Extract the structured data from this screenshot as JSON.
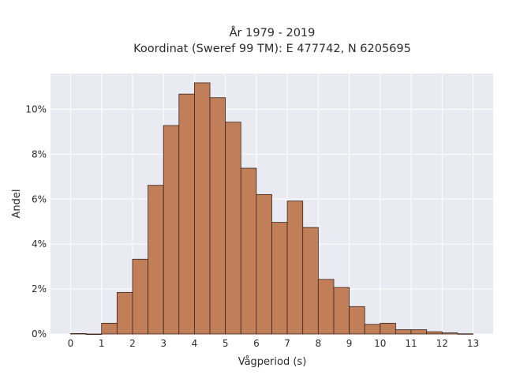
{
  "chart_data": {
    "type": "bar",
    "title": "År 1979 - 2019",
    "subtitle": "Koordinat (Sweref 99 TM): E 477742, N 6205695",
    "xlabel": "Vågperiod (s)",
    "ylabel": "Andel",
    "bin_width": 0.5,
    "bin_starts": [
      0.0,
      0.5,
      1.0,
      1.5,
      2.0,
      2.5,
      3.0,
      3.5,
      4.0,
      4.5,
      5.0,
      5.5,
      6.0,
      6.5,
      7.0,
      7.5,
      8.0,
      8.5,
      9.0,
      9.5,
      10.0,
      10.5,
      11.0,
      11.5,
      12.0,
      12.5
    ],
    "values": [
      0.02,
      0.0,
      0.48,
      1.85,
      3.33,
      6.62,
      9.28,
      10.68,
      11.18,
      10.52,
      9.43,
      7.38,
      6.21,
      4.97,
      5.92,
      4.74,
      2.43,
      2.07,
      1.22,
      0.43,
      0.48,
      0.19,
      0.19,
      0.1,
      0.05,
      0.01
    ],
    "x_ticks": [
      "0",
      "1",
      "2",
      "3",
      "4",
      "5",
      "6",
      "7",
      "8",
      "9",
      "10",
      "11",
      "12",
      "13"
    ],
    "y_ticks": [
      "0%",
      "2%",
      "4%",
      "6%",
      "8%",
      "10%"
    ],
    "xlim": [
      -0.65,
      13.65
    ],
    "ylim": [
      0,
      11.6
    ],
    "grid": true,
    "colors": {
      "bar": "#c17f59",
      "bar_edge": "#3a2418",
      "plot_bg": "#eaeaf2",
      "grid": "#ffffff"
    }
  }
}
